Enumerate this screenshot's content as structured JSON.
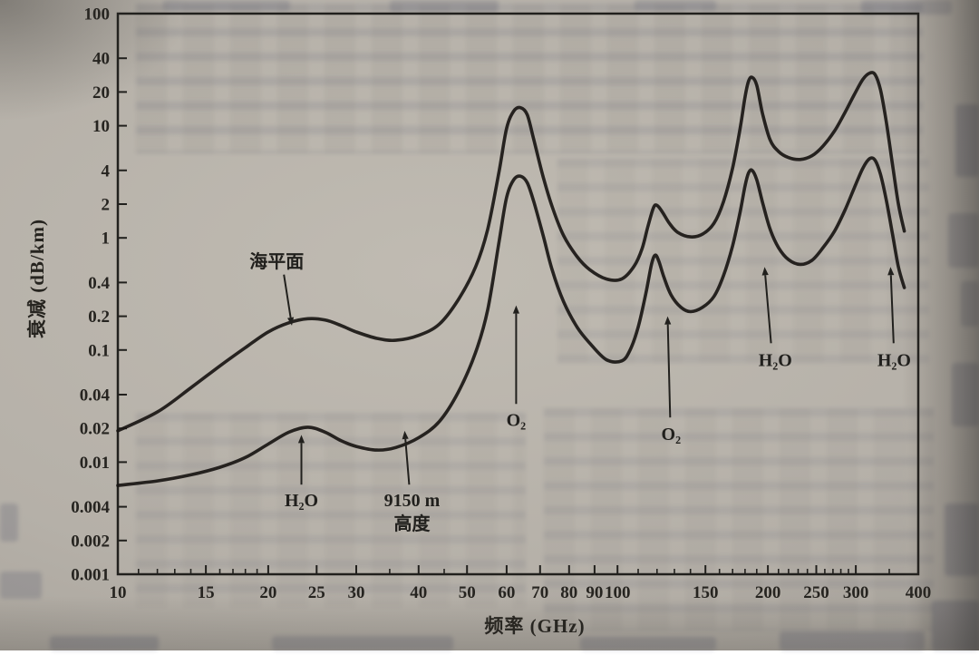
{
  "figure": {
    "ylabel": "衰减 (dB/km)",
    "xlabel": "频率 (GHz)"
  },
  "colors": {
    "paper": "#b5b0a8",
    "ink": "#21201d",
    "curve": "#191613",
    "tick_label": "#262420"
  },
  "chart_data": {
    "type": "line",
    "title": "",
    "xlabel": "频率 (GHz)",
    "ylabel": "衰减 (dB/km)",
    "x_scale": "log",
    "y_scale": "log",
    "xlim": [
      10,
      400
    ],
    "ylim": [
      0.001,
      100
    ],
    "grid": false,
    "legend_position": "none",
    "x_ticks": [
      10,
      15,
      20,
      25,
      30,
      40,
      50,
      60,
      70,
      80,
      90,
      100,
      150,
      200,
      250,
      300,
      400
    ],
    "x_minor_ticks": [
      11,
      12,
      13,
      14,
      16,
      17,
      18,
      19,
      35,
      45,
      110,
      120,
      130,
      140,
      160,
      170,
      180,
      190,
      210,
      220,
      230,
      240,
      260,
      270,
      280,
      290,
      350
    ],
    "y_ticks": [
      100,
      40,
      20,
      10,
      4,
      2,
      1,
      0.4,
      0.2,
      0.1,
      0.04,
      0.02,
      0.01,
      0.004,
      0.002,
      0.001
    ],
    "series": [
      {
        "name": "海平面",
        "points": [
          [
            10,
            0.019
          ],
          [
            12,
            0.028
          ],
          [
            14,
            0.046
          ],
          [
            16,
            0.072
          ],
          [
            18,
            0.105
          ],
          [
            20,
            0.145
          ],
          [
            22,
            0.175
          ],
          [
            24,
            0.19
          ],
          [
            26,
            0.185
          ],
          [
            28,
            0.165
          ],
          [
            30,
            0.145
          ],
          [
            33,
            0.127
          ],
          [
            36,
            0.122
          ],
          [
            40,
            0.135
          ],
          [
            44,
            0.17
          ],
          [
            48,
            0.28
          ],
          [
            52,
            0.55
          ],
          [
            55,
            1.2
          ],
          [
            58,
            4.0
          ],
          [
            60,
            9.5
          ],
          [
            62,
            13.5
          ],
          [
            64,
            14.5
          ],
          [
            66,
            12.5
          ],
          [
            68,
            7.5
          ],
          [
            71,
            3.5
          ],
          [
            74,
            1.9
          ],
          [
            78,
            1.05
          ],
          [
            83,
            0.68
          ],
          [
            88,
            0.52
          ],
          [
            95,
            0.43
          ],
          [
            102,
            0.43
          ],
          [
            108,
            0.56
          ],
          [
            112,
            0.8
          ],
          [
            115,
            1.25
          ],
          [
            118,
            1.85
          ],
          [
            120,
            1.95
          ],
          [
            123,
            1.7
          ],
          [
            127,
            1.35
          ],
          [
            132,
            1.12
          ],
          [
            140,
            1.02
          ],
          [
            148,
            1.08
          ],
          [
            156,
            1.35
          ],
          [
            163,
            2.1
          ],
          [
            170,
            4.2
          ],
          [
            176,
            9.5
          ],
          [
            180,
            18
          ],
          [
            183,
            25
          ],
          [
            186,
            27
          ],
          [
            190,
            23
          ],
          [
            195,
            13
          ],
          [
            202,
            7.5
          ],
          [
            210,
            5.9
          ],
          [
            220,
            5.2
          ],
          [
            232,
            5.0
          ],
          [
            245,
            5.4
          ],
          [
            258,
            6.6
          ],
          [
            272,
            9.0
          ],
          [
            285,
            13
          ],
          [
            298,
            19
          ],
          [
            310,
            26
          ],
          [
            320,
            29.5
          ],
          [
            328,
            28.5
          ],
          [
            336,
            21
          ],
          [
            345,
            11
          ],
          [
            355,
            4.6
          ],
          [
            365,
            2.0
          ],
          [
            375,
            1.15
          ]
        ]
      },
      {
        "name": "9150 m 高度",
        "points": [
          [
            10,
            0.0062
          ],
          [
            12,
            0.0068
          ],
          [
            14,
            0.0077
          ],
          [
            16,
            0.009
          ],
          [
            18,
            0.011
          ],
          [
            20,
            0.0145
          ],
          [
            22,
            0.0185
          ],
          [
            24,
            0.0205
          ],
          [
            26,
            0.0185
          ],
          [
            28,
            0.0155
          ],
          [
            30,
            0.0138
          ],
          [
            33,
            0.0128
          ],
          [
            36,
            0.0135
          ],
          [
            40,
            0.0165
          ],
          [
            44,
            0.023
          ],
          [
            48,
            0.042
          ],
          [
            52,
            0.095
          ],
          [
            55,
            0.23
          ],
          [
            58,
            0.95
          ],
          [
            60,
            2.3
          ],
          [
            62,
            3.3
          ],
          [
            64,
            3.55
          ],
          [
            66,
            3.1
          ],
          [
            68,
            2.1
          ],
          [
            71,
            1.05
          ],
          [
            74,
            0.52
          ],
          [
            78,
            0.27
          ],
          [
            83,
            0.16
          ],
          [
            88,
            0.115
          ],
          [
            95,
            0.082
          ],
          [
            102,
            0.08
          ],
          [
            106,
            0.1
          ],
          [
            110,
            0.16
          ],
          [
            114,
            0.32
          ],
          [
            117,
            0.58
          ],
          [
            119,
            0.7
          ],
          [
            121,
            0.62
          ],
          [
            124,
            0.44
          ],
          [
            128,
            0.31
          ],
          [
            134,
            0.24
          ],
          [
            140,
            0.22
          ],
          [
            148,
            0.24
          ],
          [
            156,
            0.3
          ],
          [
            163,
            0.46
          ],
          [
            170,
            0.85
          ],
          [
            176,
            1.7
          ],
          [
            180,
            2.9
          ],
          [
            183,
            3.8
          ],
          [
            186,
            4.0
          ],
          [
            190,
            3.3
          ],
          [
            195,
            2.1
          ],
          [
            202,
            1.2
          ],
          [
            210,
            0.82
          ],
          [
            220,
            0.64
          ],
          [
            232,
            0.58
          ],
          [
            245,
            0.63
          ],
          [
            258,
            0.82
          ],
          [
            272,
            1.15
          ],
          [
            285,
            1.75
          ],
          [
            298,
            2.8
          ],
          [
            310,
            4.2
          ],
          [
            320,
            5.1
          ],
          [
            328,
            4.9
          ],
          [
            336,
            3.7
          ],
          [
            345,
            2.2
          ],
          [
            355,
            1.1
          ],
          [
            365,
            0.55
          ],
          [
            375,
            0.36
          ]
        ]
      }
    ],
    "annotations": [
      {
        "name": "annotation-sea-level",
        "lines": [
          "海平面"
        ],
        "label_at": [
          20.8,
          0.62
        ],
        "arrow_from": [
          21.5,
          0.47
        ],
        "arrow_to": [
          22.3,
          0.165
        ]
      },
      {
        "name": "annotation-h2o-22",
        "lines": [
          "H₂O"
        ],
        "label_at": [
          23.3,
          0.0046
        ],
        "arrow_from": [
          23.3,
          0.0063
        ],
        "arrow_to": [
          23.3,
          0.0175
        ]
      },
      {
        "name": "annotation-9150m-altitude",
        "lines": [
          "9150 m",
          "高度"
        ],
        "label_at": [
          38.8,
          0.0046
        ],
        "arrow_from": [
          38.3,
          0.0063
        ],
        "arrow_to": [
          37.5,
          0.019
        ]
      },
      {
        "name": "annotation-o2-60",
        "lines": [
          "O₂"
        ],
        "label_at": [
          62.7,
          0.024
        ],
        "arrow_from": [
          62.7,
          0.033
        ],
        "arrow_to": [
          62.7,
          0.25
        ]
      },
      {
        "name": "annotation-o2-118",
        "lines": [
          "O₂"
        ],
        "label_at": [
          128,
          0.018
        ],
        "arrow_from": [
          127.5,
          0.025
        ],
        "arrow_to": [
          126,
          0.2
        ]
      },
      {
        "name": "annotation-h2o-183",
        "lines": [
          "H₂O"
        ],
        "label_at": [
          207,
          0.082
        ],
        "arrow_from": [
          203,
          0.115
        ],
        "arrow_to": [
          197,
          0.55
        ]
      },
      {
        "name": "annotation-h2o-325",
        "lines": [
          "H₂O"
        ],
        "label_at": [
          358,
          0.082
        ],
        "arrow_from": [
          357,
          0.115
        ],
        "arrow_to": [
          352,
          0.55
        ]
      }
    ]
  }
}
